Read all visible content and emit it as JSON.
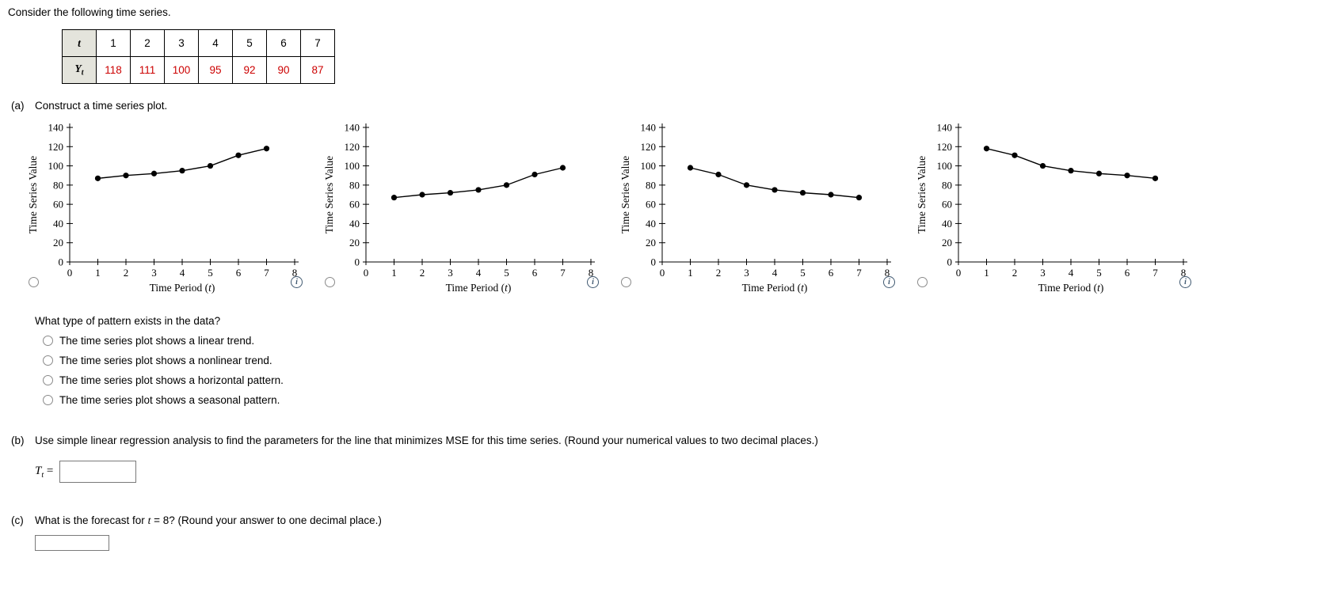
{
  "intro": "Consider the following time series.",
  "table": {
    "t_label": "t",
    "y_label_main": "Y",
    "y_label_sub": "t",
    "t_values": [
      "1",
      "2",
      "3",
      "4",
      "5",
      "6",
      "7"
    ],
    "y_values": [
      "118",
      "111",
      "100",
      "95",
      "92",
      "90",
      "87"
    ]
  },
  "part_a": {
    "label": "(a)",
    "text": "Construct a time series plot."
  },
  "chart_axis": {
    "ylabel": "Time Series Value",
    "xlabel_prefix": "Time Period (",
    "xlabel_var": "t",
    "xlabel_suffix": ")",
    "ylim": [
      0,
      140
    ],
    "ystep": 20,
    "xlim": [
      0,
      8
    ],
    "xstep": 1,
    "grid": false,
    "legend": "none"
  },
  "chart_data": [
    {
      "type": "line",
      "x": [
        1,
        2,
        3,
        4,
        5,
        6,
        7
      ],
      "values": [
        87,
        90,
        92,
        95,
        100,
        111,
        118
      ]
    },
    {
      "type": "line",
      "x": [
        1,
        2,
        3,
        4,
        5,
        6,
        7
      ],
      "values": [
        67,
        70,
        72,
        75,
        80,
        91,
        98
      ]
    },
    {
      "type": "line",
      "x": [
        1,
        2,
        3,
        4,
        5,
        6,
        7
      ],
      "values": [
        98,
        91,
        80,
        75,
        72,
        70,
        67
      ]
    },
    {
      "type": "line",
      "x": [
        1,
        2,
        3,
        4,
        5,
        6,
        7
      ],
      "values": [
        118,
        111,
        100,
        95,
        92,
        90,
        87
      ]
    }
  ],
  "info_icon_glyph": "i",
  "pattern_question": {
    "text": "What type of pattern exists in the data?",
    "options": [
      "The time series plot shows a linear trend.",
      "The time series plot shows a nonlinear trend.",
      "The time series plot shows a horizontal pattern.",
      "The time series plot shows a seasonal pattern."
    ]
  },
  "part_b": {
    "label": "(b)",
    "text": "Use simple linear regression analysis to find the parameters for the line that minimizes MSE for this time series. (Round your numerical values to two decimal places.)",
    "formula_main": "T",
    "formula_sub": "t",
    "equals": " = ",
    "input_value": ""
  },
  "part_c": {
    "label": "(c)",
    "text_prefix": "What is the forecast for ",
    "text_var": "t",
    "text_suffix": " = 8? (Round your answer to one decimal place.)",
    "input_value": ""
  },
  "colors": {
    "value_red": "#cc0000",
    "table_header_bg": "#e4e4dc",
    "series_color": "#000000"
  }
}
